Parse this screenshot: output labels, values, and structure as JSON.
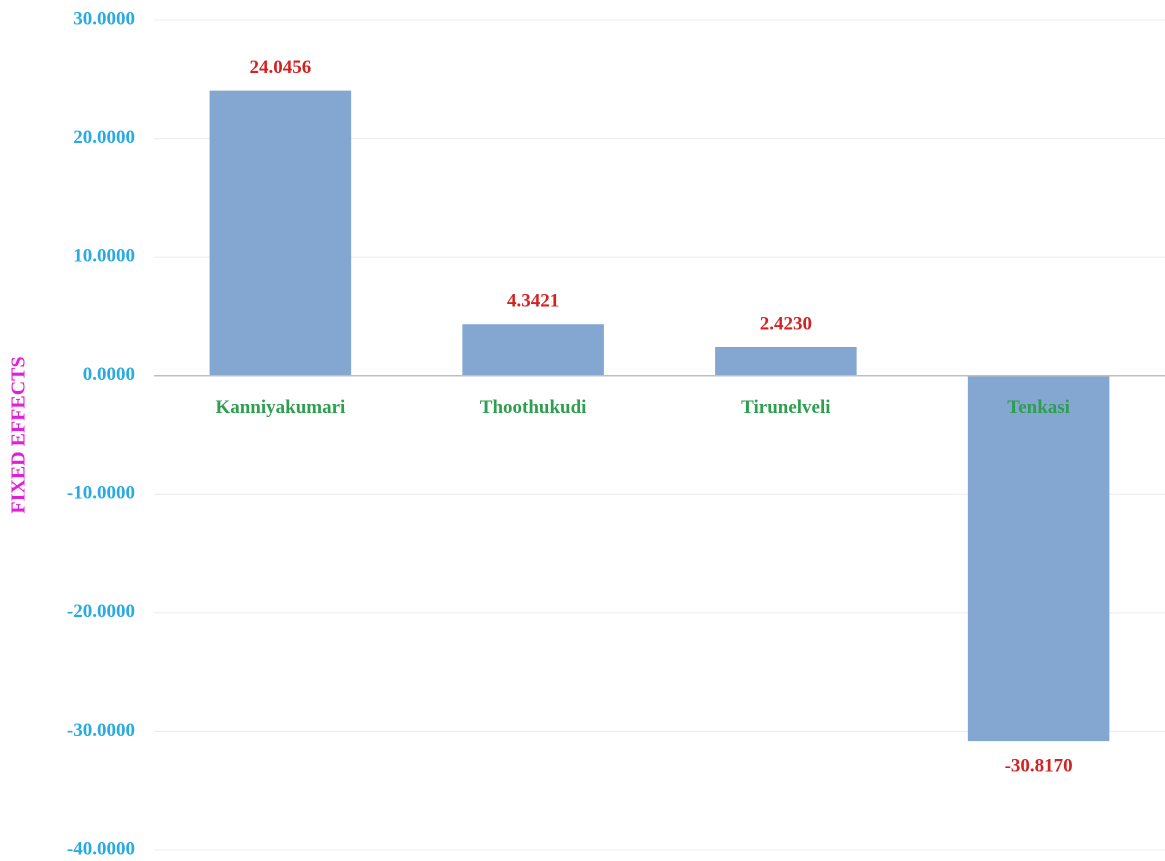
{
  "chart_data": {
    "type": "bar",
    "y_axis_label": "FIXED EFFECTS",
    "categories": [
      "Kanniyakumari",
      "Thoothukudi",
      "Tirunelveli",
      "Tenkasi"
    ],
    "values": [
      24.0456,
      4.3421,
      2.423,
      -30.817
    ],
    "value_labels": [
      "24.0456",
      "4.3421",
      "2.4230",
      "-30.8170"
    ],
    "color": "#84a7d2",
    "ylim": [
      -40,
      30
    ],
    "yticks": [
      {
        "value": -40,
        "label": "-40.0000"
      },
      {
        "value": -30,
        "label": "-30.0000"
      },
      {
        "value": -20,
        "label": "-20.0000"
      },
      {
        "value": -10,
        "label": "-10.0000"
      },
      {
        "value": 0,
        "label": "0.0000"
      },
      {
        "value": 10,
        "label": "10.0000"
      },
      {
        "value": 20,
        "label": "20.0000"
      },
      {
        "value": 30,
        "label": "30.0000"
      }
    ],
    "grid": true
  }
}
